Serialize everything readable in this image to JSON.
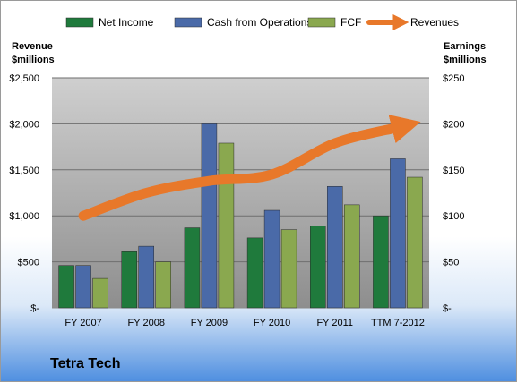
{
  "chart_data": {
    "type": "bar",
    "categories": [
      "FY 2007",
      "FY 2008",
      "FY 2009",
      "FY 2010",
      "FY 2011",
      "TTM 7-2012"
    ],
    "series": [
      {
        "name": "Net Income",
        "axis": "right",
        "values": [
          46,
          61,
          87,
          76,
          89,
          100
        ],
        "color": "#1f7a3c"
      },
      {
        "name": "Cash from Operations",
        "axis": "right",
        "values": [
          46,
          67,
          200,
          106,
          132,
          162
        ],
        "color": "#4a6aa8"
      },
      {
        "name": "FCF",
        "axis": "right",
        "values": [
          32,
          50,
          179,
          85,
          112,
          142
        ],
        "color": "#8aa84f"
      },
      {
        "name": "Revenues",
        "type": "line",
        "axis": "left",
        "values": [
          1000,
          1250,
          1380,
          1450,
          1790,
          1960
        ],
        "color": "#e8782a"
      }
    ],
    "left_axis": {
      "label_line1": "Revenue",
      "label_line2": "$millions",
      "ylim": [
        0,
        2500
      ],
      "ticks": [
        "$-",
        "$500",
        "$1,000",
        "$1,500",
        "$2,000",
        "$2,500"
      ]
    },
    "right_axis": {
      "label_line1": "Earnings",
      "label_line2": "$millions",
      "ylim": [
        0,
        250
      ],
      "ticks": [
        "$-",
        "$50",
        "$100",
        "$150",
        "$200",
        "$250"
      ]
    },
    "legend_position": "top",
    "grid": true
  },
  "company": "Tetra Tech"
}
